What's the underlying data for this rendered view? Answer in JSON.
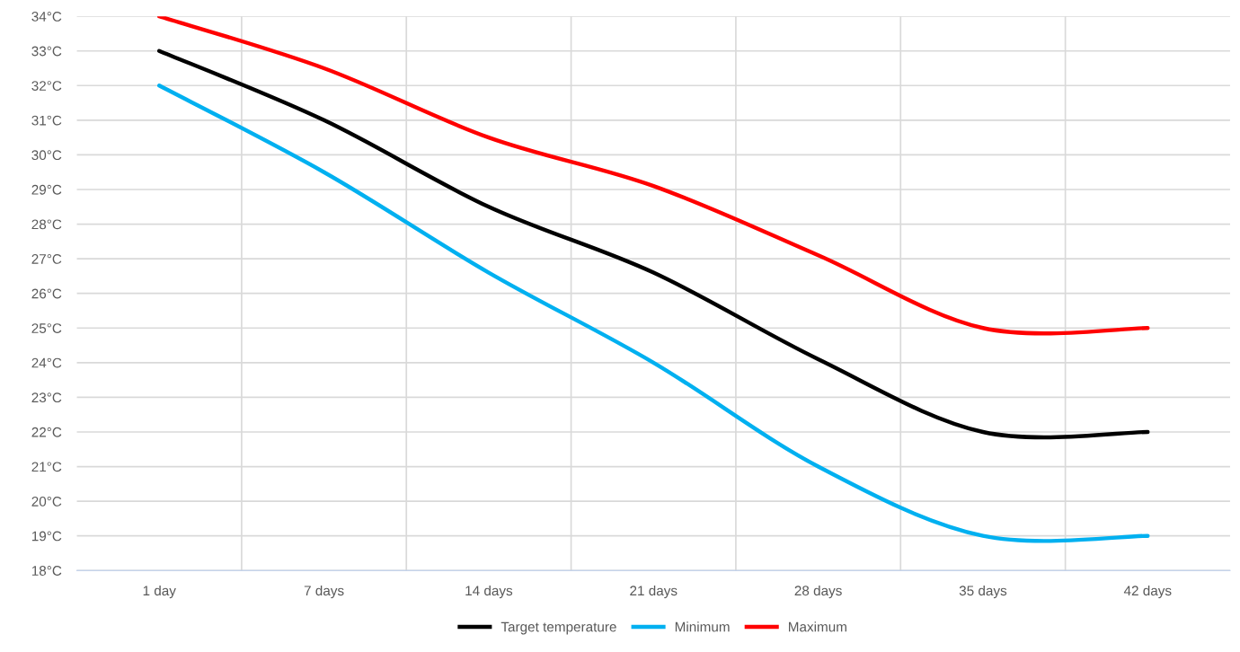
{
  "chart_data": {
    "type": "line",
    "categories": [
      "1 day",
      "7 days",
      "14 days",
      "21 days",
      "28 days",
      "35 days",
      "42 days"
    ],
    "series": [
      {
        "name": "Target temperature",
        "color": "#000000",
        "values": [
          33,
          31,
          28.5,
          26.6,
          24.1,
          22,
          22
        ]
      },
      {
        "name": "Minimum",
        "color": "#00b0f0",
        "values": [
          32,
          29.5,
          26.6,
          24,
          21,
          19,
          19
        ]
      },
      {
        "name": "Maximum",
        "color": "#ff0000",
        "values": [
          34,
          32.5,
          30.5,
          29.1,
          27.1,
          25,
          25
        ]
      }
    ],
    "ylim": [
      18,
      34
    ],
    "yticks": [
      {
        "value": 18,
        "label": "18°C"
      },
      {
        "value": 19,
        "label": "19°C"
      },
      {
        "value": 20,
        "label": "20°C"
      },
      {
        "value": 21,
        "label": "21°C"
      },
      {
        "value": 22,
        "label": "22°C"
      },
      {
        "value": 23,
        "label": "23°C"
      },
      {
        "value": 24,
        "label": "24°C"
      },
      {
        "value": 25,
        "label": "25°C"
      },
      {
        "value": 26,
        "label": "26°C"
      },
      {
        "value": 27,
        "label": "27°C"
      },
      {
        "value": 28,
        "label": "28°C"
      },
      {
        "value": 29,
        "label": "29°C"
      },
      {
        "value": 30,
        "label": "30°C"
      },
      {
        "value": 31,
        "label": "31°C"
      },
      {
        "value": 32,
        "label": "32°C"
      },
      {
        "value": 33,
        "label": "33°C"
      },
      {
        "value": 34,
        "label": "34°C"
      }
    ],
    "grid": true,
    "legend": "bottom",
    "marker": "none",
    "line_style": "solid"
  }
}
